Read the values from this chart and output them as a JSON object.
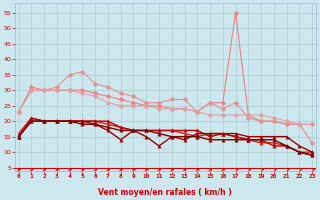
{
  "background_color": "#cce8ee",
  "grid_color": "#aaccd4",
  "xlabel": "Vent moyen/en rafales ( km/h )",
  "xlabel_color": "#cc0000",
  "tick_color": "#cc0000",
  "x_ticks": [
    0,
    1,
    2,
    3,
    4,
    5,
    6,
    7,
    8,
    9,
    10,
    11,
    12,
    13,
    14,
    15,
    16,
    17,
    18,
    19,
    20,
    21,
    22,
    23
  ],
  "y_ticks": [
    5,
    10,
    15,
    20,
    25,
    30,
    35,
    40,
    45,
    50,
    55
  ],
  "ylim": [
    4,
    58
  ],
  "xlim": [
    -0.3,
    23.3
  ],
  "series": [
    {
      "color": "#f08080",
      "values": [
        23,
        31,
        30,
        30,
        30,
        30,
        29,
        28,
        27,
        26,
        25,
        25,
        24,
        24,
        23,
        26,
        26,
        55,
        22,
        20,
        20,
        19,
        19,
        13
      ],
      "marker": "D",
      "markersize": 2.5,
      "linewidth": 0.8
    },
    {
      "color": "#e89090",
      "values": [
        23,
        30,
        30,
        31,
        35,
        36,
        32,
        31,
        29,
        28,
        26,
        26,
        27,
        27,
        23,
        26,
        24,
        26,
        21,
        20,
        20,
        19,
        19,
        19
      ],
      "marker": "D",
      "markersize": 2.5,
      "linewidth": 0.8
    },
    {
      "color": "#e0a0a0",
      "values": [
        23,
        30,
        30,
        30,
        30,
        29,
        28,
        26,
        25,
        25,
        25,
        24,
        24,
        24,
        23,
        22,
        22,
        22,
        22,
        22,
        21,
        20,
        19,
        13
      ],
      "marker": "D",
      "markersize": 2.5,
      "linewidth": 0.8
    },
    {
      "color": "#cc2222",
      "values": [
        16,
        21,
        20,
        20,
        20,
        20,
        20,
        19,
        18,
        17,
        17,
        17,
        17,
        16,
        15,
        16,
        16,
        15,
        14,
        13,
        13,
        12,
        10,
        10
      ],
      "marker": "^",
      "markersize": 2.5,
      "linewidth": 1.0
    },
    {
      "color": "#bb0000",
      "values": [
        15,
        21,
        20,
        20,
        20,
        20,
        20,
        20,
        18,
        17,
        17,
        17,
        17,
        17,
        17,
        15,
        16,
        15,
        14,
        14,
        12,
        12,
        10,
        9
      ],
      "marker": "^",
      "markersize": 2.5,
      "linewidth": 1.0
    },
    {
      "color": "#990000",
      "values": [
        15,
        20,
        20,
        20,
        20,
        20,
        19,
        17,
        14,
        17,
        15,
        12,
        15,
        14,
        16,
        16,
        16,
        16,
        15,
        15,
        15,
        15,
        12,
        10
      ],
      "marker": "^",
      "markersize": 2.5,
      "linewidth": 1.0
    },
    {
      "color": "#770000",
      "values": [
        15,
        20,
        20,
        20,
        20,
        19,
        19,
        18,
        17,
        17,
        17,
        16,
        15,
        15,
        15,
        14,
        14,
        14,
        14,
        14,
        14,
        12,
        10,
        9
      ],
      "marker": "^",
      "markersize": 2.5,
      "linewidth": 1.0
    }
  ],
  "arrow_directions": [
    0,
    0,
    0,
    0,
    0,
    0,
    0,
    0,
    0,
    0,
    0,
    0,
    0,
    0,
    0,
    0,
    0,
    45,
    45,
    45,
    45,
    45,
    45,
    45
  ]
}
